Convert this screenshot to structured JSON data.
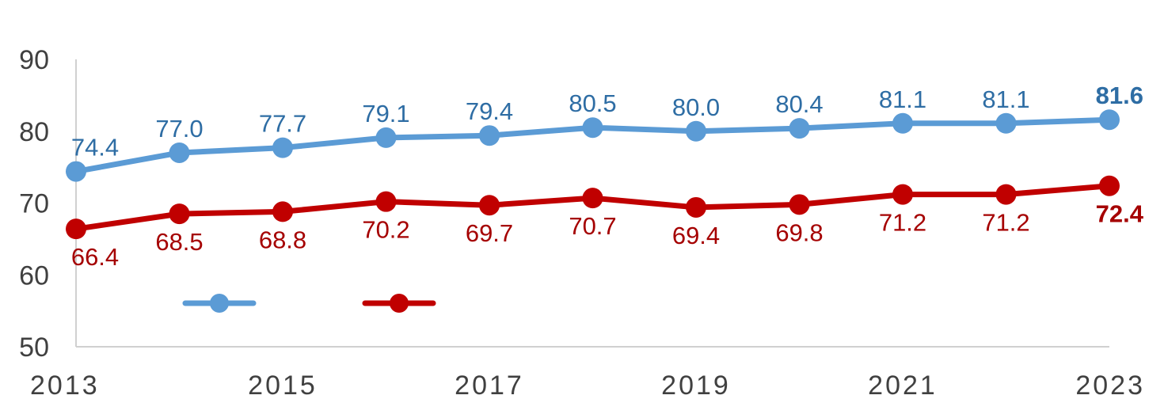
{
  "chart_data": {
    "type": "line",
    "x": [
      2013,
      2014,
      2015,
      2016,
      2017,
      2018,
      2019,
      2020,
      2021,
      2022,
      2023
    ],
    "x_tick_labels": [
      "2013",
      "2015",
      "2017",
      "2019",
      "2021",
      "2023"
    ],
    "y_tick_labels": [
      "50",
      "60",
      "70",
      "80",
      "90"
    ],
    "ylim": [
      50,
      90
    ],
    "xlim": [
      2013,
      2023
    ],
    "grid": false,
    "legend": "bottom-left",
    "title": "",
    "xlabel": "",
    "ylabel": "",
    "series": [
      {
        "color": "#5B9BD5",
        "label_color": "#2E6DA4",
        "label_position": "above",
        "values": [
          74.4,
          77.0,
          77.7,
          79.1,
          79.4,
          80.5,
          80.0,
          80.4,
          81.1,
          81.1,
          81.6
        ],
        "labels": [
          "74.4",
          "77.0",
          "77.7",
          "79.1",
          "79.4",
          "80.5",
          "80.0",
          "80.4",
          "81.1",
          "81.1",
          "81.6"
        ]
      },
      {
        "color": "#C00000",
        "label_color": "#A50000",
        "label_position": "below",
        "values": [
          66.4,
          68.5,
          68.8,
          70.2,
          69.7,
          70.7,
          69.4,
          69.8,
          71.2,
          71.2,
          72.4
        ],
        "labels": [
          "66.4",
          "68.5",
          "68.8",
          "70.2",
          "69.7",
          "70.7",
          "69.4",
          "69.8",
          "71.2",
          "71.2",
          "72.4"
        ]
      }
    ]
  }
}
